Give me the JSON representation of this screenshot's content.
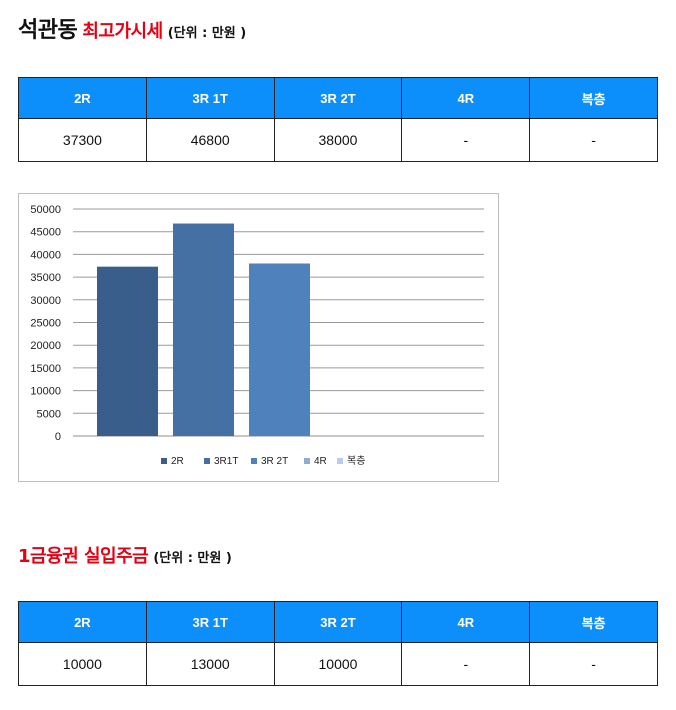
{
  "section1": {
    "title_black": "석관동",
    "title_red": "최고가시세",
    "unit": "(단위 : 만원 )",
    "headers": [
      "2R",
      "3R 1T",
      "3R 2T",
      "4R",
      "복층"
    ],
    "values": [
      "37300",
      "46800",
      "38000",
      "-",
      "-"
    ]
  },
  "section2": {
    "title_red": "1금융권 실입주금",
    "unit": "(단위 : 만원 )",
    "headers": [
      "2R",
      "3R 1T",
      "3R 2T",
      "4R",
      "복층"
    ],
    "values": [
      "10000",
      "13000",
      "10000",
      "-",
      "-"
    ]
  },
  "chart_data": {
    "type": "bar",
    "categories": [
      "2R",
      "3R1T",
      "3R 2T",
      "4R",
      "복층"
    ],
    "series": [
      {
        "values": [
          37300,
          46800,
          38000,
          0,
          0
        ]
      }
    ],
    "colors": [
      "#3a5e8c",
      "#4470a4",
      "#4f81bd",
      "#8eabd8",
      "#b9cce8"
    ],
    "legend": [
      "2R",
      "3R1T",
      "3R 2T",
      "4R",
      "복층"
    ],
    "yticks": [
      0,
      5000,
      10000,
      15000,
      20000,
      25000,
      30000,
      35000,
      40000,
      45000,
      50000
    ],
    "ylim": [
      0,
      50000
    ],
    "grid": true,
    "legend_position": "bottom",
    "title": "",
    "xlabel": "",
    "ylabel": ""
  }
}
